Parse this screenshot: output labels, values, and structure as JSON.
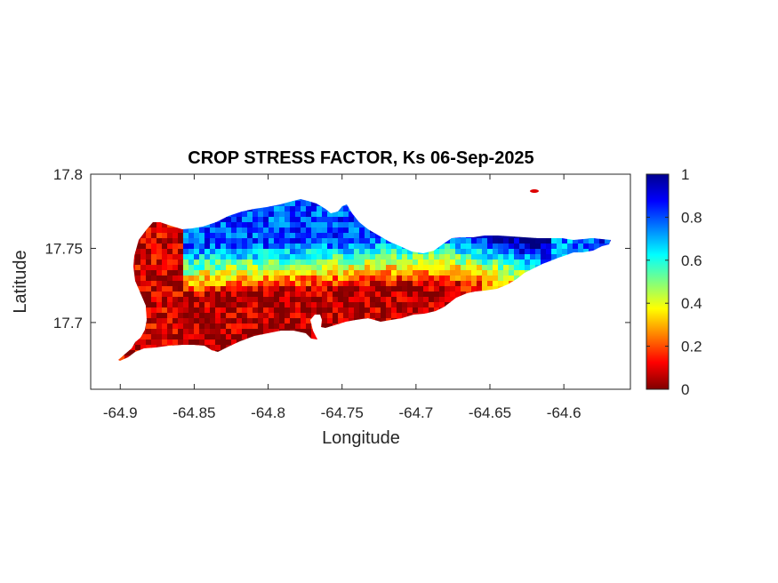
{
  "title": "CROP STRESS FACTOR, Ks  06-Sep-2025",
  "map": {
    "xlabel": "Longitude",
    "ylabel": "Latitude",
    "xlim": [
      -64.92,
      -64.555
    ],
    "ylim": [
      17.655,
      17.8
    ],
    "x_ticks": [
      {
        "value": -64.9,
        "label": "-64.9"
      },
      {
        "value": -64.85,
        "label": "-64.85"
      },
      {
        "value": -64.8,
        "label": "-64.8"
      },
      {
        "value": -64.75,
        "label": "-64.75"
      },
      {
        "value": -64.7,
        "label": "-64.7"
      },
      {
        "value": -64.65,
        "label": "-64.65"
      },
      {
        "value": -64.6,
        "label": "-64.6"
      }
    ],
    "y_ticks": [
      {
        "value": 17.8,
        "label": "17.8"
      },
      {
        "value": 17.75,
        "label": "17.75"
      },
      {
        "value": 17.7,
        "label": "17.7"
      }
    ],
    "colormap": "jet",
    "colorbar": {
      "range": [
        0,
        1
      ],
      "ticks": [
        {
          "value": 1,
          "label": "1"
        },
        {
          "value": 0.8,
          "label": "0.8"
        },
        {
          "value": 0.6,
          "label": "0.6"
        },
        {
          "value": 0.4,
          "label": "0.4"
        },
        {
          "value": 0.2,
          "label": "0.2"
        },
        {
          "value": 0,
          "label": "0"
        }
      ]
    }
  }
}
